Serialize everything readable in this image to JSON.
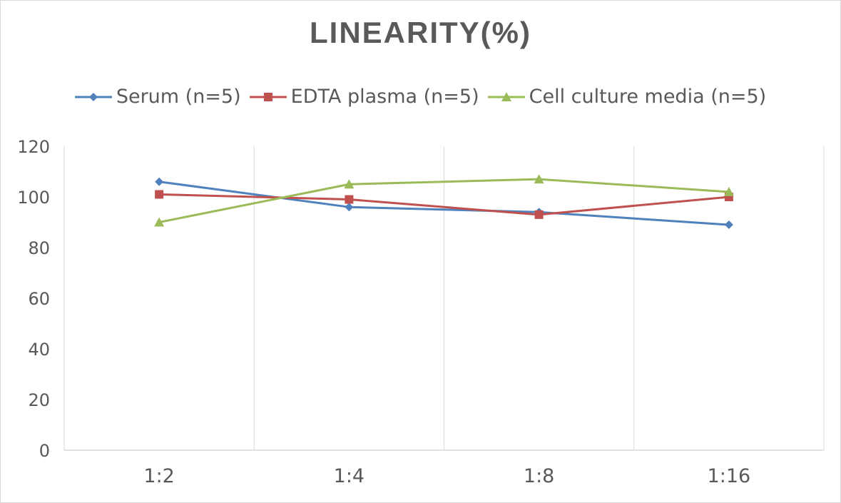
{
  "chart_data": {
    "type": "line",
    "title": "LINEARITY(%)",
    "xlabel": "",
    "ylabel": "",
    "categories": [
      "1:2",
      "1:4",
      "1:8",
      "1:16"
    ],
    "ylim": [
      0,
      120
    ],
    "yticks": [
      0,
      20,
      40,
      60,
      80,
      100,
      120
    ],
    "grid": "vertical",
    "legend_position": "top",
    "series": [
      {
        "name": "Serum (n=5)",
        "values": [
          106,
          96,
          94,
          89
        ],
        "color": "#4f81bd",
        "marker": "diamond"
      },
      {
        "name": "EDTA plasma (n=5)",
        "values": [
          101,
          99,
          93,
          100
        ],
        "color": "#c0504d",
        "marker": "square"
      },
      {
        "name": "Cell culture media (n=5)",
        "values": [
          90,
          105,
          107,
          102
        ],
        "color": "#9bbb59",
        "marker": "triangle"
      }
    ]
  }
}
